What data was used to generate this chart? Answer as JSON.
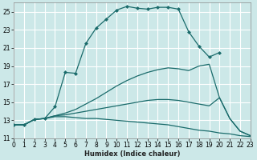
{
  "xlabel": "Humidex (Indice chaleur)",
  "xlim": [
    0,
    23
  ],
  "ylim": [
    11,
    26
  ],
  "xticks": [
    0,
    1,
    2,
    3,
    4,
    5,
    6,
    7,
    8,
    9,
    10,
    11,
    12,
    13,
    14,
    15,
    16,
    17,
    18,
    19,
    20,
    21,
    22,
    23
  ],
  "yticks": [
    11,
    13,
    15,
    17,
    19,
    21,
    23,
    25
  ],
  "background_color": "#cce8e8",
  "grid_color": "#ffffff",
  "line_color": "#1a6b6b",
  "line1_x": [
    0,
    1,
    2,
    3,
    4,
    5,
    6,
    7,
    8,
    9,
    10,
    11,
    12,
    13,
    14,
    15,
    16,
    17,
    18,
    19,
    20
  ],
  "line1_y": [
    12.5,
    12.5,
    13.1,
    13.2,
    14.5,
    18.3,
    18.2,
    21.5,
    23.2,
    24.2,
    25.2,
    25.6,
    25.4,
    25.3,
    25.5,
    25.5,
    25.3,
    22.8,
    21.2,
    20.0,
    20.5
  ],
  "line2_x": [
    0,
    1,
    2,
    3,
    4,
    5,
    6,
    7,
    8,
    9,
    10,
    11,
    12,
    13,
    14,
    15,
    16,
    17,
    18,
    19,
    20,
    21,
    22,
    23
  ],
  "line2_y": [
    12.5,
    12.5,
    13.1,
    13.2,
    13.5,
    13.8,
    14.2,
    14.8,
    15.4,
    16.1,
    16.8,
    17.4,
    17.9,
    18.3,
    18.6,
    18.8,
    18.7,
    18.5,
    19.0,
    19.2,
    15.5,
    13.2,
    11.8,
    11.3
  ],
  "line3_x": [
    0,
    1,
    2,
    3,
    4,
    5,
    6,
    7,
    8,
    9,
    10,
    11,
    12,
    13,
    14,
    15,
    16,
    17,
    18,
    19,
    20,
    21,
    22,
    23
  ],
  "line3_y": [
    12.5,
    12.5,
    13.1,
    13.2,
    13.5,
    13.6,
    13.8,
    14.0,
    14.2,
    14.4,
    14.6,
    14.8,
    15.0,
    15.2,
    15.3,
    15.3,
    15.2,
    15.0,
    14.8,
    14.6,
    15.5,
    13.2,
    11.8,
    11.3
  ],
  "line4_x": [
    0,
    1,
    2,
    3,
    4,
    5,
    6,
    7,
    8,
    9,
    10,
    11,
    12,
    13,
    14,
    15,
    16,
    17,
    18,
    19,
    20,
    21,
    22,
    23
  ],
  "line4_y": [
    12.5,
    12.5,
    13.1,
    13.2,
    13.4,
    13.4,
    13.3,
    13.2,
    13.2,
    13.1,
    13.0,
    12.9,
    12.8,
    12.7,
    12.6,
    12.5,
    12.3,
    12.1,
    11.9,
    11.8,
    11.6,
    11.5,
    11.3,
    11.2
  ]
}
